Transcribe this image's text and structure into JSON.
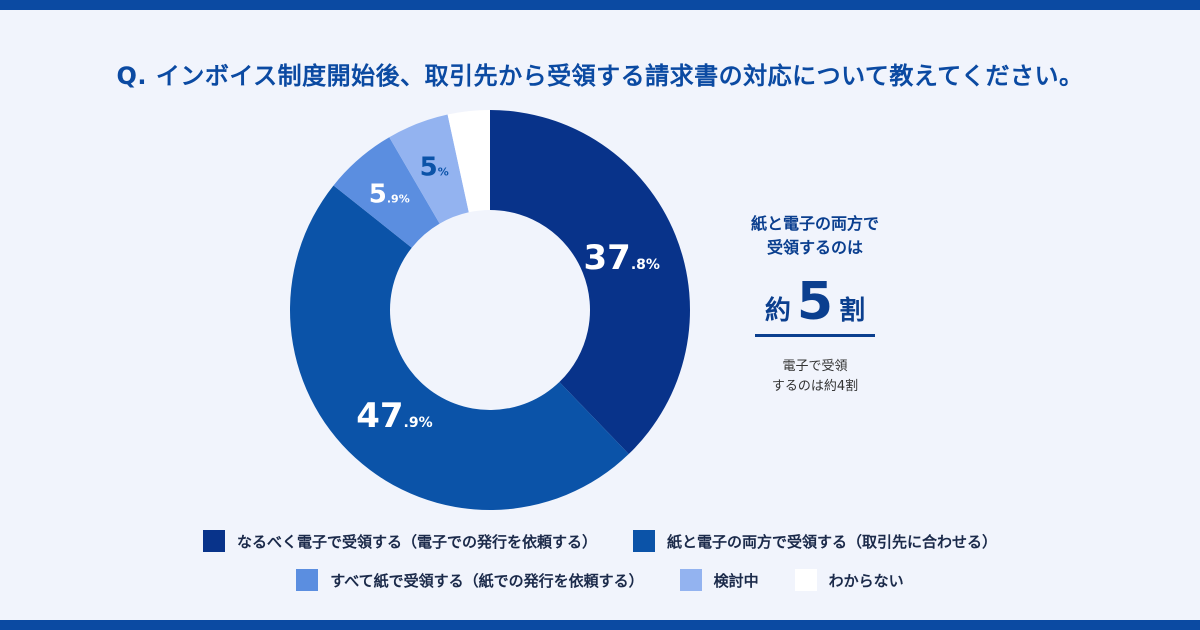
{
  "question": "Q. インボイス制度開始後、取引先から受領する請求書の対応について教えてください。",
  "chart_data": {
    "type": "pie",
    "donut": true,
    "categories": [
      "なるべく電子で受領する（電子での発行を依頼する）",
      "紙と電子の両方で受領する（取引先に合わせる）",
      "すべて紙で受領する（紙での発行を依頼する）",
      "検討中",
      "わからない"
    ],
    "values": [
      37.8,
      47.9,
      5.9,
      5.0,
      3.4
    ],
    "labels": [
      {
        "main": "37",
        "sub": ".8%"
      },
      {
        "main": "47",
        "sub": ".9%"
      },
      {
        "main": "5",
        "sub": ".9%"
      },
      {
        "main": "5",
        "sub": "%"
      },
      null
    ],
    "colors": [
      "#08338a",
      "#0b53a8",
      "#5b8ee0",
      "#93b3f0",
      "#ffffff"
    ],
    "label_colors": [
      "#ffffff",
      "#ffffff",
      "#ffffff",
      "#0b53a8",
      null
    ],
    "legend_position": "bottom"
  },
  "callout": {
    "line1": "紙と電子の両方で",
    "line2": "受領するのは",
    "big_prefix": "約",
    "big_number": "5",
    "big_suffix": "割",
    "sub_line1": "電子で受領",
    "sub_line2": "するのは約4割"
  }
}
